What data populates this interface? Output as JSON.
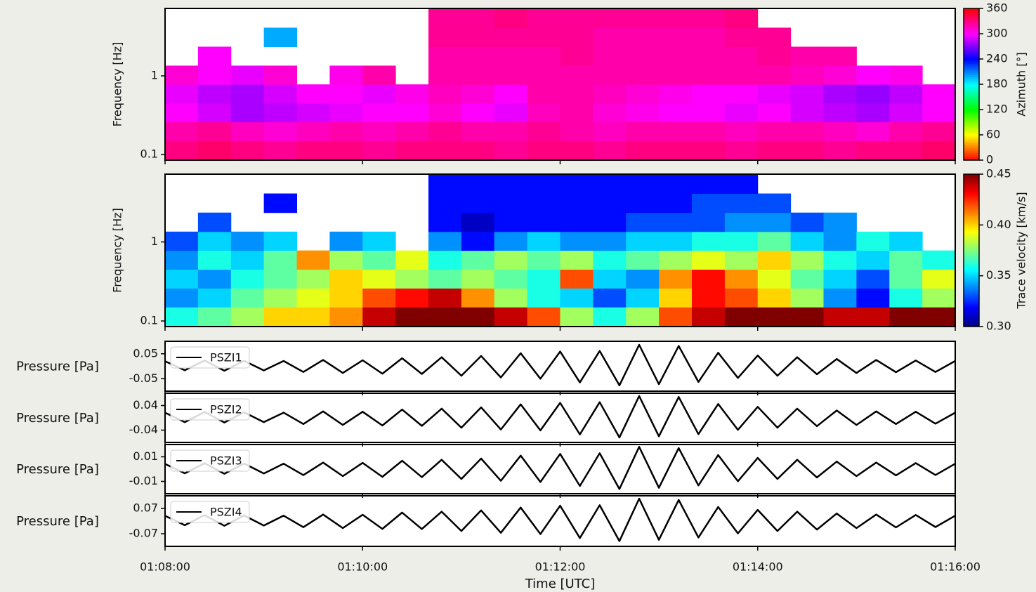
{
  "chart_data": [
    {
      "type": "heatmap",
      "ylabel": "Frequency [Hz]",
      "yscale": "log",
      "ylim": [
        0.085,
        7.2
      ],
      "yticks": [
        0.1,
        1
      ],
      "xlim": [
        0,
        480
      ],
      "xbins": [
        0,
        20,
        40,
        60,
        80,
        100,
        120,
        140,
        160,
        180,
        200,
        220,
        240,
        260,
        280,
        300,
        320,
        340,
        360,
        380,
        400,
        420,
        440,
        460,
        480
      ],
      "ybins": [
        0.085,
        0.15,
        0.26,
        0.45,
        0.78,
        1.35,
        2.35,
        4.1,
        7.2
      ],
      "colormap": "hsv",
      "clim": [
        0,
        360
      ],
      "cticks": [
        0,
        60,
        120,
        180,
        240,
        300,
        360
      ],
      "clabel": "Azimuth [°]",
      "values": [
        [
          330,
          335,
          330,
          325,
          330,
          330,
          325,
          330,
          330,
          330,
          325,
          330,
          330,
          325,
          330,
          330,
          330,
          325,
          330,
          330,
          325,
          330,
          330,
          335
        ],
        [
          320,
          325,
          315,
          310,
          315,
          320,
          315,
          320,
          325,
          320,
          320,
          325,
          320,
          315,
          320,
          320,
          320,
          315,
          320,
          320,
          315,
          310,
          320,
          325
        ],
        [
          300,
          290,
          280,
          285,
          290,
          295,
          300,
          300,
          310,
          300,
          295,
          315,
          320,
          310,
          305,
          300,
          300,
          295,
          300,
          290,
          285,
          280,
          290,
          300
        ],
        [
          295,
          285,
          280,
          290,
          300,
          300,
          295,
          305,
          315,
          310,
          300,
          320,
          320,
          315,
          310,
          305,
          300,
          300,
          295,
          290,
          280,
          275,
          285,
          300
        ],
        [
          310,
          300,
          295,
          310,
          null,
          305,
          320,
          null,
          320,
          320,
          320,
          320,
          320,
          320,
          320,
          320,
          320,
          320,
          320,
          315,
          310,
          300,
          305,
          null
        ],
        [
          null,
          300,
          null,
          null,
          null,
          null,
          null,
          null,
          320,
          320,
          320,
          320,
          325,
          320,
          320,
          320,
          320,
          320,
          325,
          320,
          320,
          null,
          null,
          null
        ],
        [
          null,
          null,
          null,
          200,
          null,
          null,
          null,
          null,
          325,
          325,
          325,
          325,
          325,
          320,
          320,
          320,
          320,
          325,
          325,
          null,
          null,
          null,
          null,
          null
        ],
        [
          null,
          null,
          null,
          null,
          null,
          null,
          null,
          null,
          325,
          325,
          330,
          325,
          325,
          325,
          325,
          325,
          325,
          330,
          null,
          null,
          null,
          null,
          null,
          null
        ]
      ]
    },
    {
      "type": "heatmap",
      "ylabel": "Frequency [Hz]",
      "yscale": "log",
      "ylim": [
        0.085,
        7.2
      ],
      "yticks": [
        0.1,
        1
      ],
      "xlim": [
        0,
        480
      ],
      "xbins": [
        0,
        20,
        40,
        60,
        80,
        100,
        120,
        140,
        160,
        180,
        200,
        220,
        240,
        260,
        280,
        300,
        320,
        340,
        360,
        380,
        400,
        420,
        440,
        460,
        480
      ],
      "ybins": [
        0.085,
        0.15,
        0.26,
        0.45,
        0.78,
        1.35,
        2.35,
        4.1,
        7.2
      ],
      "colormap": "jet",
      "clim": [
        0.3,
        0.45
      ],
      "cticks": [
        {
          "value": 0.3,
          "label": "0.30"
        },
        0.35,
        {
          "value": 0.4,
          "label": "0.40"
        },
        0.45
      ],
      "clabel": "Trace velocity [km/s]",
      "values": [
        [
          0.36,
          0.37,
          0.38,
          0.4,
          0.4,
          0.41,
          0.44,
          0.45,
          0.45,
          0.45,
          0.44,
          0.42,
          0.38,
          0.36,
          0.38,
          0.42,
          0.44,
          0.45,
          0.45,
          0.45,
          0.44,
          0.44,
          0.45,
          0.45
        ],
        [
          0.34,
          0.35,
          0.37,
          0.38,
          0.39,
          0.4,
          0.42,
          0.43,
          0.44,
          0.41,
          0.38,
          0.36,
          0.35,
          0.33,
          0.35,
          0.4,
          0.43,
          0.42,
          0.4,
          0.38,
          0.34,
          0.32,
          0.36,
          0.38
        ],
        [
          0.35,
          0.34,
          0.36,
          0.37,
          0.38,
          0.4,
          0.39,
          0.38,
          0.37,
          0.38,
          0.37,
          0.36,
          0.42,
          0.35,
          0.34,
          0.41,
          0.43,
          0.41,
          0.39,
          0.37,
          0.35,
          0.33,
          0.37,
          0.39
        ],
        [
          0.34,
          0.36,
          0.35,
          0.37,
          0.41,
          0.38,
          0.37,
          0.39,
          0.36,
          0.37,
          0.38,
          0.37,
          0.38,
          0.36,
          0.37,
          0.38,
          0.39,
          0.38,
          0.4,
          0.38,
          0.36,
          0.35,
          0.37,
          0.36
        ],
        [
          0.33,
          0.35,
          0.34,
          0.35,
          null,
          0.34,
          0.35,
          null,
          0.34,
          0.32,
          0.34,
          0.35,
          0.34,
          0.34,
          0.35,
          0.35,
          0.36,
          0.36,
          0.37,
          0.35,
          0.34,
          0.36,
          0.35,
          null
        ],
        [
          null,
          0.33,
          null,
          null,
          null,
          null,
          null,
          null,
          0.32,
          0.31,
          0.32,
          0.32,
          0.32,
          0.32,
          0.33,
          0.33,
          0.33,
          0.34,
          0.34,
          0.33,
          0.34,
          null,
          null,
          null
        ],
        [
          null,
          null,
          null,
          0.32,
          null,
          null,
          null,
          null,
          0.32,
          0.32,
          0.32,
          0.32,
          0.32,
          0.32,
          0.32,
          0.32,
          0.33,
          0.33,
          0.33,
          null,
          null,
          null,
          null,
          null
        ],
        [
          null,
          null,
          null,
          null,
          null,
          null,
          null,
          null,
          0.32,
          0.32,
          0.32,
          0.32,
          0.32,
          0.32,
          0.32,
          0.32,
          0.32,
          0.32,
          null,
          null,
          null,
          null,
          null,
          null
        ]
      ]
    },
    {
      "type": "line",
      "ylabel": "Pressure [Pa]",
      "ylim": [
        -0.1,
        0.1
      ],
      "yticks": [
        0.05,
        -0.05
      ],
      "xlim": [
        0,
        480
      ],
      "x": [
        0,
        12,
        24,
        36,
        48,
        60,
        72,
        84,
        96,
        108,
        120,
        132,
        144,
        156,
        168,
        180,
        192,
        204,
        216,
        228,
        240,
        252,
        264,
        276,
        288,
        300,
        312,
        324,
        336,
        348,
        360,
        372,
        384,
        396,
        408,
        420,
        432,
        444,
        456,
        468,
        480
      ],
      "series": [
        {
          "name": "PSZI1",
          "color": "#000000",
          "values": [
            0.02,
            -0.016,
            0.023,
            -0.018,
            0.022,
            -0.017,
            0.021,
            -0.023,
            0.025,
            -0.027,
            0.024,
            -0.03,
            0.032,
            -0.031,
            0.036,
            -0.038,
            0.041,
            -0.045,
            0.052,
            -0.05,
            0.059,
            -0.065,
            0.061,
            -0.077,
            0.086,
            -0.072,
            0.081,
            -0.063,
            0.054,
            -0.047,
            0.043,
            -0.038,
            0.036,
            -0.032,
            0.029,
            -0.027,
            0.025,
            -0.024,
            0.023,
            -0.023,
            0.021
          ]
        }
      ]
    },
    {
      "type": "line",
      "ylabel": "Pressure [Pa]",
      "ylim": [
        -0.08,
        0.08
      ],
      "yticks": [
        0.04,
        -0.04
      ],
      "xlim": [
        0,
        480
      ],
      "x": [
        0,
        12,
        24,
        36,
        48,
        60,
        72,
        84,
        96,
        108,
        120,
        132,
        144,
        156,
        168,
        180,
        192,
        204,
        216,
        228,
        240,
        252,
        264,
        276,
        288,
        300,
        312,
        324,
        336,
        348,
        360,
        372,
        384,
        396,
        408,
        420,
        432,
        444,
        456,
        468,
        480
      ],
      "series": [
        {
          "name": "PSZI2",
          "color": "#000000",
          "values": [
            0.017,
            -0.014,
            0.019,
            -0.015,
            0.018,
            -0.014,
            0.017,
            -0.02,
            0.021,
            -0.023,
            0.02,
            -0.025,
            0.027,
            -0.026,
            0.03,
            -0.032,
            0.034,
            -0.038,
            0.044,
            -0.041,
            0.049,
            -0.054,
            0.051,
            -0.064,
            0.071,
            -0.06,
            0.068,
            -0.053,
            0.045,
            -0.039,
            0.036,
            -0.032,
            0.03,
            -0.027,
            0.024,
            -0.023,
            0.021,
            -0.02,
            0.02,
            -0.019,
            0.017
          ]
        }
      ]
    },
    {
      "type": "line",
      "ylabel": "Pressure [Pa]",
      "ylim": [
        -0.02,
        0.02
      ],
      "yticks": [
        0.01,
        -0.01
      ],
      "xlim": [
        0,
        480
      ],
      "x": [
        0,
        12,
        24,
        36,
        48,
        60,
        72,
        84,
        96,
        108,
        120,
        132,
        144,
        156,
        168,
        180,
        192,
        204,
        216,
        228,
        240,
        252,
        264,
        276,
        288,
        300,
        312,
        324,
        336,
        348,
        360,
        372,
        384,
        396,
        408,
        420,
        432,
        444,
        456,
        468,
        480
      ],
      "series": [
        {
          "name": "PSZI3",
          "color": "#000000",
          "values": [
            0.0042,
            -0.0034,
            0.0048,
            -0.0038,
            0.0046,
            -0.0036,
            0.0044,
            -0.0049,
            0.0053,
            -0.0057,
            0.0051,
            -0.0063,
            0.0068,
            -0.0065,
            0.0076,
            -0.008,
            0.0086,
            -0.0095,
            0.011,
            -0.0105,
            0.0124,
            -0.0137,
            0.0129,
            -0.0162,
            0.0181,
            -0.0152,
            0.0171,
            -0.0133,
            0.0114,
            -0.0099,
            0.0091,
            -0.008,
            0.0076,
            -0.0068,
            0.0061,
            -0.0057,
            0.0053,
            -0.0051,
            0.0049,
            -0.0048,
            0.0044
          ]
        }
      ]
    },
    {
      "type": "line",
      "ylabel": "Pressure [Pa]",
      "ylim": [
        -0.14,
        0.14
      ],
      "yticks": [
        0.07,
        -0.07
      ],
      "xlim": [
        0,
        480
      ],
      "x": [
        0,
        12,
        24,
        36,
        48,
        60,
        72,
        84,
        96,
        108,
        120,
        132,
        144,
        156,
        168,
        180,
        192,
        204,
        216,
        228,
        240,
        252,
        264,
        276,
        288,
        300,
        312,
        324,
        336,
        348,
        360,
        372,
        384,
        396,
        408,
        420,
        432,
        444,
        456,
        468,
        480
      ],
      "series": [
        {
          "name": "PSZI4",
          "color": "#000000",
          "values": [
            0.029,
            -0.023,
            0.033,
            -0.026,
            0.031,
            -0.025,
            0.03,
            -0.034,
            0.036,
            -0.039,
            0.035,
            -0.043,
            0.047,
            -0.044,
            0.052,
            -0.055,
            0.059,
            -0.065,
            0.075,
            -0.072,
            0.085,
            -0.094,
            0.088,
            -0.111,
            0.124,
            -0.104,
            0.117,
            -0.091,
            0.078,
            -0.068,
            0.062,
            -0.055,
            0.052,
            -0.047,
            0.042,
            -0.039,
            0.036,
            -0.035,
            0.034,
            -0.033,
            0.03
          ]
        }
      ],
      "xlabel": "Time [UTC]",
      "xticks": [
        {
          "value": 0,
          "label": "01:08:00"
        },
        {
          "value": 120,
          "label": "01:10:00"
        },
        {
          "value": 240,
          "label": "01:12:00"
        },
        {
          "value": 360,
          "label": "01:14:00"
        },
        {
          "value": 480,
          "label": "01:16:00"
        }
      ]
    }
  ]
}
